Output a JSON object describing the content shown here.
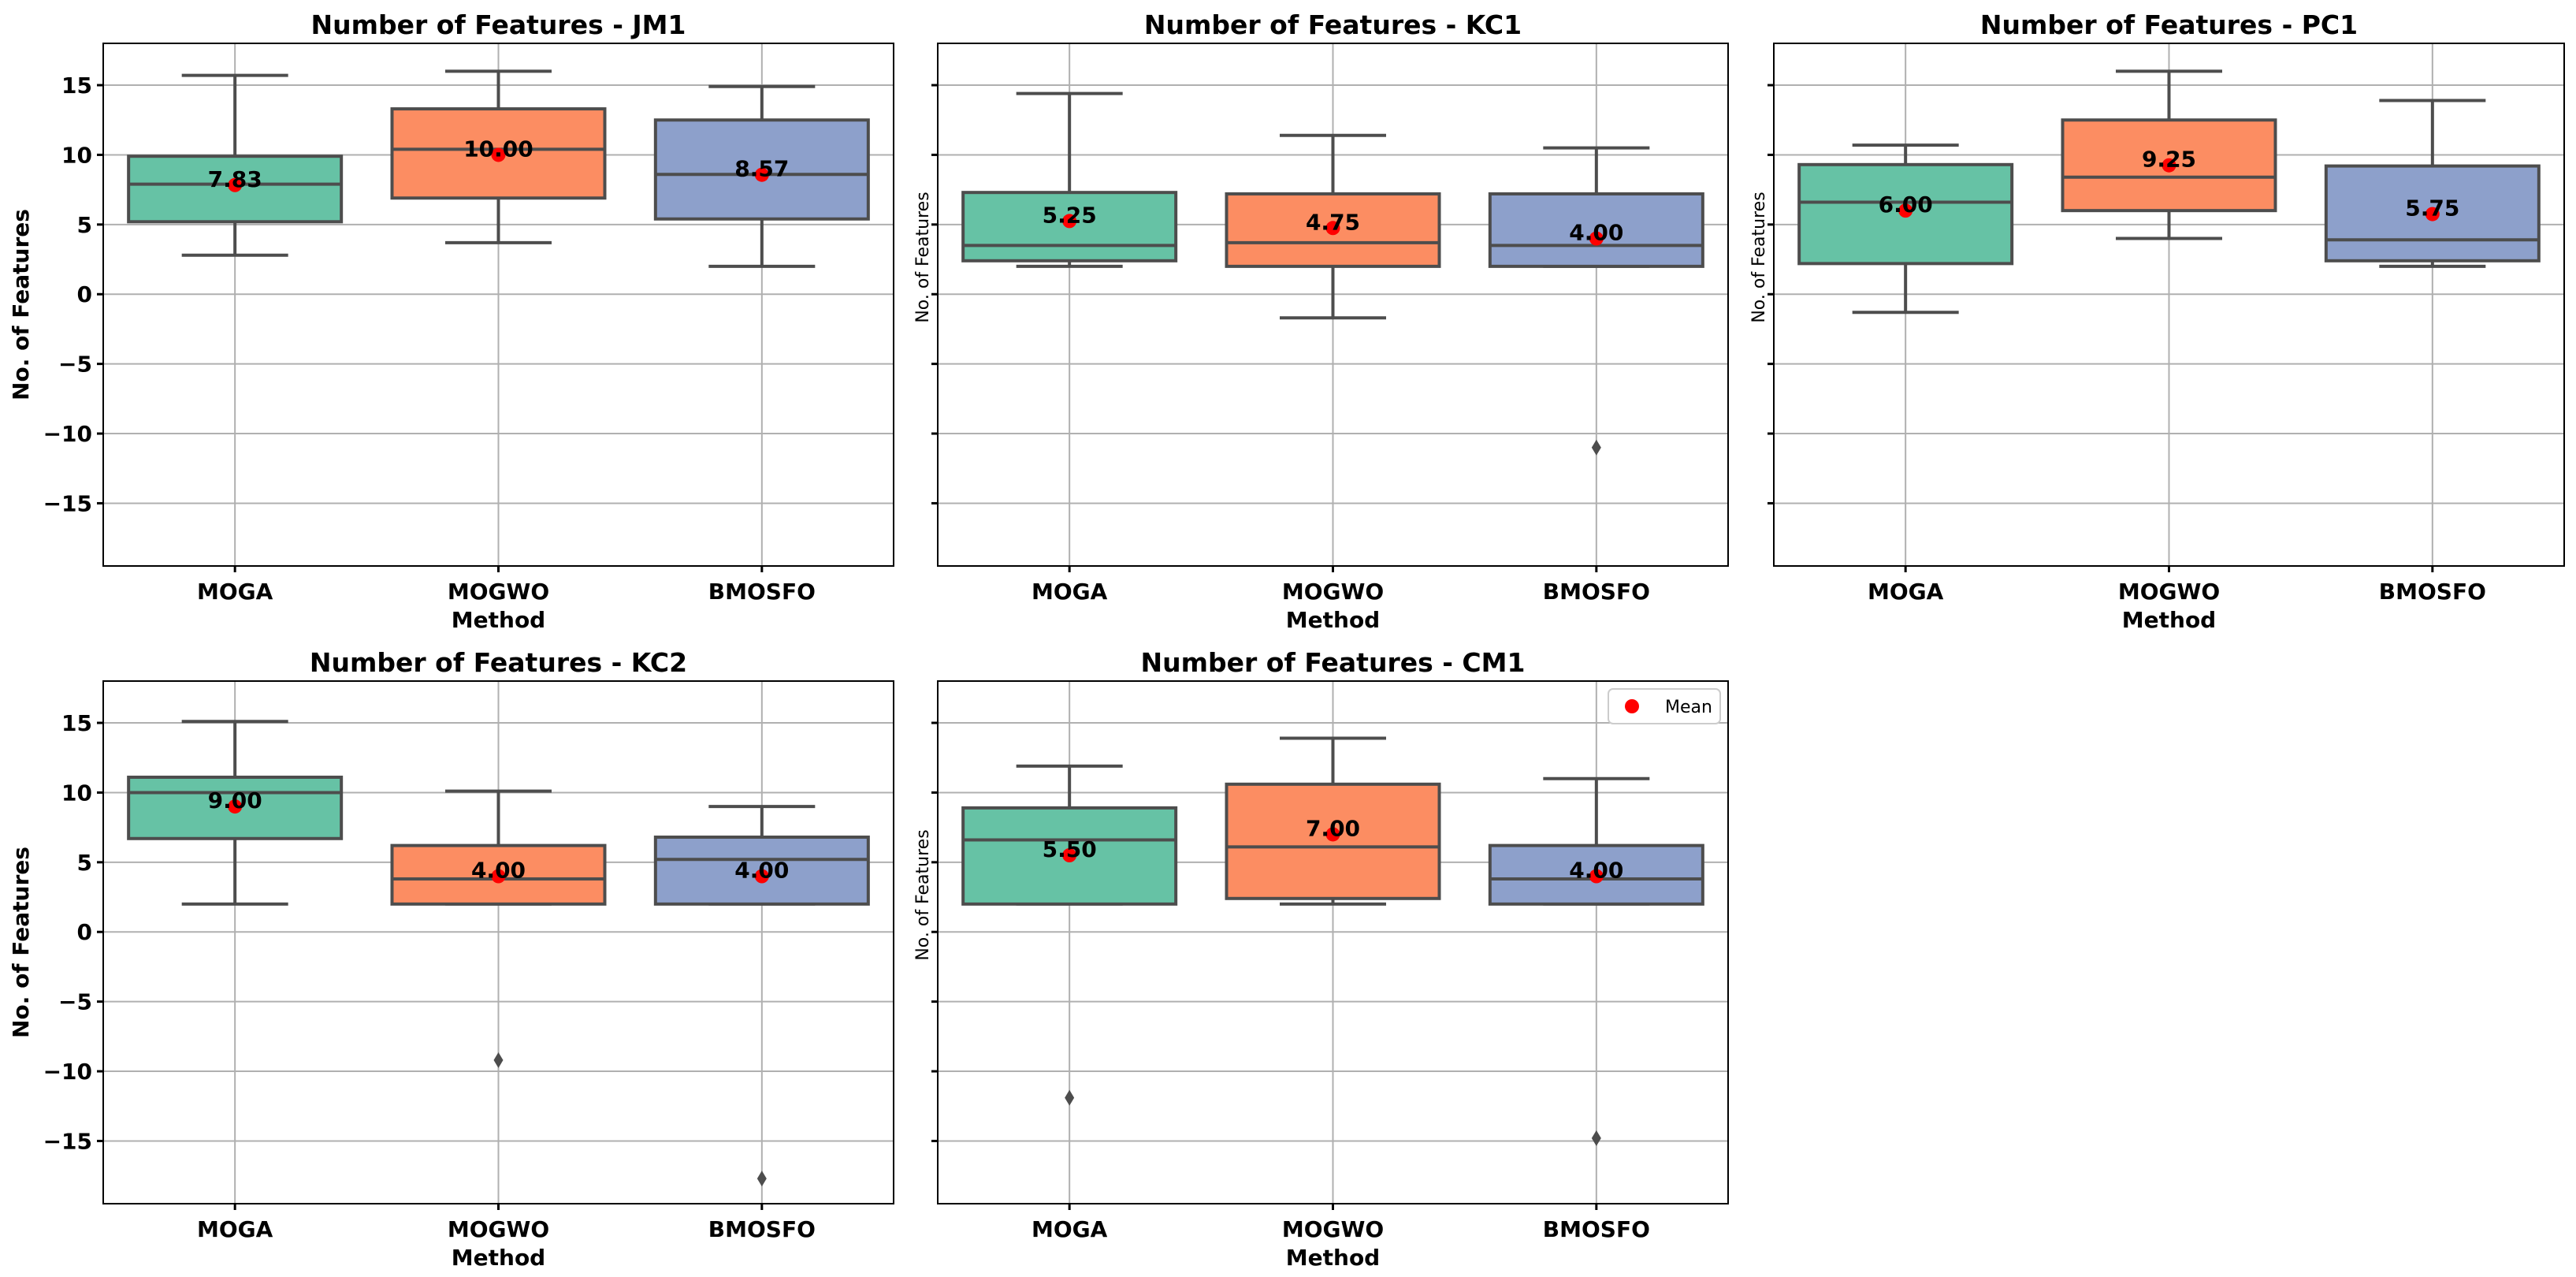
{
  "chart_data": {
    "type": "box",
    "y_range": [
      -19.5,
      18
    ],
    "y_ticks": [
      15,
      10,
      5,
      0,
      -5,
      -10,
      -15
    ],
    "methods": [
      "MOGA",
      "MOGWO",
      "BMOSFO"
    ],
    "colors": {
      "MOGA": "#66c2a5",
      "MOGWO": "#fc8d62",
      "BMOSFO": "#8da0cb",
      "mean": "#ff0000"
    },
    "legend": {
      "label": "Mean",
      "placement": "top-right of CM1"
    },
    "panels": [
      {
        "title": "Number of Features - JM1",
        "ylabel": "No. of Features",
        "xlabel": "Method",
        "boxes": [
          {
            "method": "MOGA",
            "whisker_low": 2.8,
            "q1": 5.2,
            "median": 7.9,
            "q3": 9.9,
            "whisker_high": 15.7,
            "mean": 7.83,
            "mean_label": "7.83",
            "outliers": []
          },
          {
            "method": "MOGWO",
            "whisker_low": 3.7,
            "q1": 6.9,
            "median": 10.4,
            "q3": 13.3,
            "whisker_high": 16.0,
            "mean": 10.0,
            "mean_label": "10.00",
            "outliers": []
          },
          {
            "method": "BMOSFO",
            "whisker_low": 2.0,
            "q1": 5.4,
            "median": 8.6,
            "q3": 12.5,
            "whisker_high": 14.9,
            "mean": 8.57,
            "mean_label": "8.57",
            "outliers": []
          }
        ]
      },
      {
        "title": "Number of Features - KC1",
        "ylabel": "No. of Features",
        "xlabel": "Method",
        "boxes": [
          {
            "method": "MOGA",
            "whisker_low": 2.0,
            "q1": 2.4,
            "median": 3.5,
            "q3": 7.3,
            "whisker_high": 14.4,
            "mean": 5.25,
            "mean_label": "5.25",
            "outliers": []
          },
          {
            "method": "MOGWO",
            "whisker_low": -1.7,
            "q1": 2.0,
            "median": 3.7,
            "q3": 7.2,
            "whisker_high": 11.4,
            "mean": 4.75,
            "mean_label": "4.75",
            "outliers": []
          },
          {
            "method": "BMOSFO",
            "whisker_low": 2.0,
            "q1": 2.0,
            "median": 3.5,
            "q3": 7.2,
            "whisker_high": 10.5,
            "mean": 4.0,
            "mean_label": "4.00",
            "outliers": [
              -11.0
            ]
          }
        ]
      },
      {
        "title": "Number of Features - PC1",
        "ylabel": "No. of Features",
        "xlabel": "Method",
        "boxes": [
          {
            "method": "MOGA",
            "whisker_low": -1.3,
            "q1": 2.2,
            "median": 6.6,
            "q3": 9.3,
            "whisker_high": 10.7,
            "mean": 6.0,
            "mean_label": "6.00",
            "outliers": []
          },
          {
            "method": "MOGWO",
            "whisker_low": 4.0,
            "q1": 6.0,
            "median": 8.4,
            "q3": 12.5,
            "whisker_high": 16.0,
            "mean": 9.25,
            "mean_label": "9.25",
            "outliers": []
          },
          {
            "method": "BMOSFO",
            "whisker_low": 2.0,
            "q1": 2.4,
            "median": 3.9,
            "q3": 9.2,
            "whisker_high": 13.9,
            "mean": 5.75,
            "mean_label": "5.75",
            "outliers": []
          }
        ]
      },
      {
        "title": "Number of Features - KC2",
        "ylabel": "No. of Features",
        "xlabel": "Method",
        "boxes": [
          {
            "method": "MOGA",
            "whisker_low": 2.0,
            "q1": 6.7,
            "median": 10.0,
            "q3": 11.1,
            "whisker_high": 15.1,
            "mean": 9.0,
            "mean_label": "9.00",
            "outliers": []
          },
          {
            "method": "MOGWO",
            "whisker_low": 2.0,
            "q1": 2.0,
            "median": 3.8,
            "q3": 6.2,
            "whisker_high": 10.1,
            "mean": 4.0,
            "mean_label": "4.00",
            "outliers": [
              -9.2
            ]
          },
          {
            "method": "BMOSFO",
            "whisker_low": 2.0,
            "q1": 2.0,
            "median": 5.2,
            "q3": 6.8,
            "whisker_high": 9.0,
            "mean": 4.0,
            "mean_label": "4.00",
            "outliers": [
              -17.7
            ]
          }
        ]
      },
      {
        "title": "Number of Features - CM1",
        "ylabel": "No. of Features",
        "xlabel": "Method",
        "boxes": [
          {
            "method": "MOGA",
            "whisker_low": 2.0,
            "q1": 2.0,
            "median": 6.6,
            "q3": 8.9,
            "whisker_high": 11.9,
            "mean": 5.5,
            "mean_label": "5.50",
            "outliers": [
              -11.9
            ]
          },
          {
            "method": "MOGWO",
            "whisker_low": 2.0,
            "q1": 2.4,
            "median": 6.1,
            "q3": 10.6,
            "whisker_high": 13.9,
            "mean": 7.0,
            "mean_label": "7.00",
            "outliers": []
          },
          {
            "method": "BMOSFO",
            "whisker_low": 2.0,
            "q1": 2.0,
            "median": 3.8,
            "q3": 6.2,
            "whisker_high": 11.0,
            "mean": 4.0,
            "mean_label": "4.00",
            "outliers": [
              -14.8
            ]
          }
        ]
      }
    ]
  }
}
